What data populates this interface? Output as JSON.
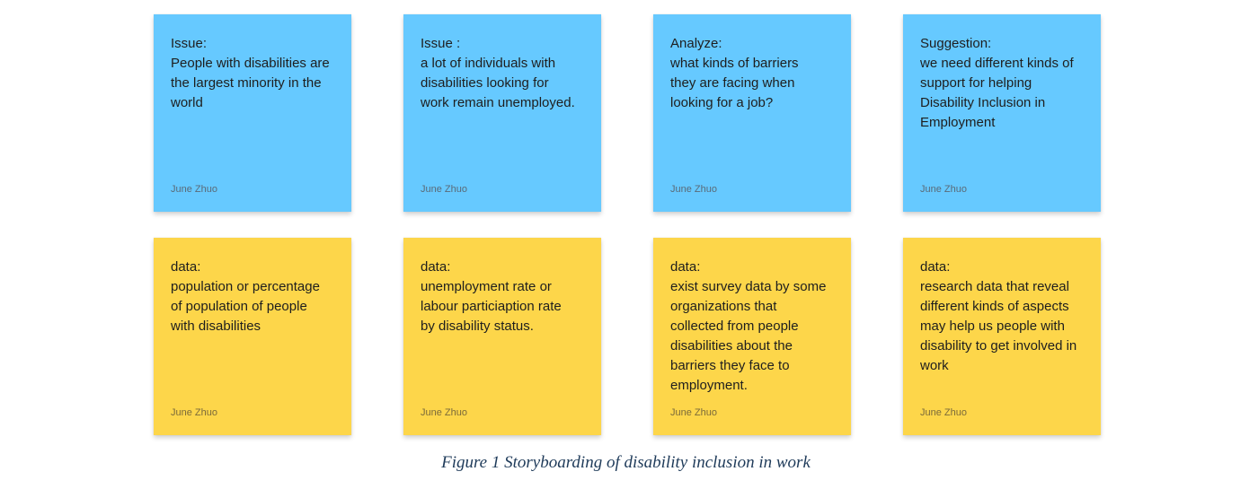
{
  "notes": [
    {
      "id": "issue-1",
      "color": "blue",
      "lines": [
        "Issue:",
        "People with disabilities are",
        "the largest minority in the",
        "world"
      ],
      "author": "June Zhuo"
    },
    {
      "id": "issue-2",
      "color": "blue",
      "lines": [
        "Issue :",
        "a lot of individuals with",
        "disabilities looking for",
        "work remain unemployed."
      ],
      "author": "June Zhuo"
    },
    {
      "id": "analyze",
      "color": "blue",
      "lines": [
        "Analyze:",
        "what kinds of barriers",
        "they are facing when",
        "looking for a job?"
      ],
      "author": "June Zhuo"
    },
    {
      "id": "suggestion",
      "color": "blue",
      "lines": [
        "Suggestion:",
        "we need different kinds of",
        "support for helping",
        "Disability Inclusion in",
        "Employment"
      ],
      "author": "June Zhuo"
    },
    {
      "id": "data-1",
      "color": "yellow",
      "lines": [
        "data:",
        "population or percentage",
        "of population of people",
        "with disabilities"
      ],
      "author": "June Zhuo"
    },
    {
      "id": "data-2",
      "color": "yellow",
      "lines": [
        "data:",
        "unemployment rate or",
        "labour particiaption rate",
        "by disability status."
      ],
      "author": "June Zhuo"
    },
    {
      "id": "data-3",
      "color": "yellow",
      "lines": [
        "data:",
        "exist survey data by some",
        "organizations that",
        "collected from people",
        "disabilities about the",
        "barriers they face to",
        "employment."
      ],
      "author": "June Zhuo"
    },
    {
      "id": "data-4",
      "color": "yellow",
      "lines": [
        "data:",
        "research data that reveal",
        "different kinds of aspects",
        "may help us people with",
        "disability to get involved in",
        "work"
      ],
      "author": "June Zhuo"
    }
  ],
  "colors": {
    "blue": "#66c9ff",
    "yellow": "#fdd64a"
  },
  "caption": "Figure 1 Storyboarding of disability inclusion in work"
}
